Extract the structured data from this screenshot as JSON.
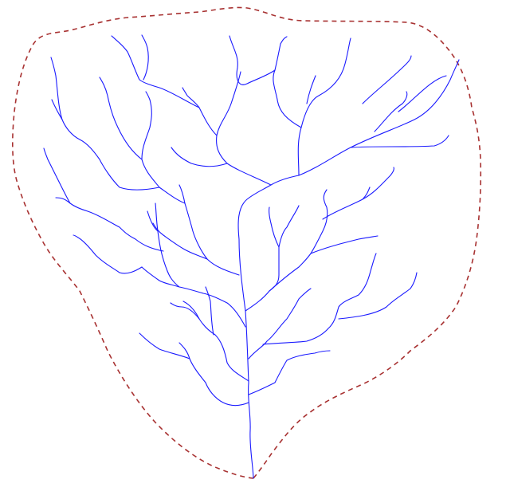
{
  "diagram": {
    "type": "drainage-network",
    "colors": {
      "background": "#ffffff",
      "watershed_boundary": "#a83232",
      "streams": "#1a1aff"
    },
    "elements": {
      "watershed_boundary": {
        "style": "dashed",
        "closed": true
      },
      "stream_network": {
        "style": "solid",
        "pattern": "dendritic",
        "outlet": "bottom-center"
      }
    }
  }
}
